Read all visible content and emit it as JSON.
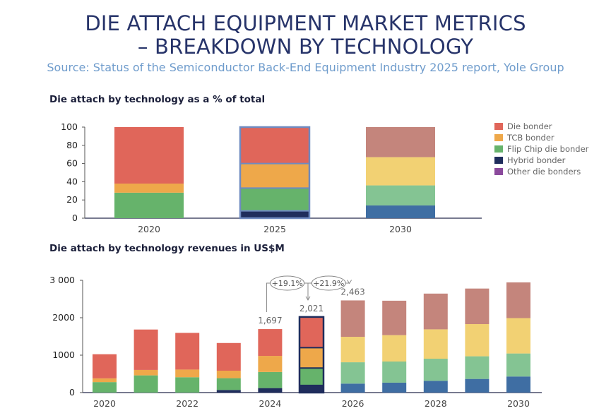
{
  "header": {
    "title_line1": "DIE ATTACH EQUIPMENT MARKET METRICS",
    "title_line2": "– BREAKDOWN BY TECHNOLOGY",
    "source": "Source: Status of the Semiconductor Back-End Equipment Industry 2025 report, Yole Group"
  },
  "legend": [
    {
      "label": "Die bonder",
      "color": "#e0665a"
    },
    {
      "label": "TCB bonder",
      "color": "#eea84a"
    },
    {
      "label": "Flip Chip die bonder",
      "color": "#66b36b"
    },
    {
      "label": "Hybrid bonder",
      "color": "#1f2d5c"
    },
    {
      "label": "Other die bonders",
      "color": "#8b4a9c"
    }
  ],
  "forecast_colors": {
    "Die bonder": "#c4857c",
    "TCB bonder": "#f2d173",
    "Flip Chip die bonder": "#84c493",
    "Hybrid bonder": "#3f6ea3"
  },
  "chart_data": [
    {
      "type": "bar",
      "stacked": true,
      "title": "Die attach by technology as a % of total",
      "categories": [
        "2020",
        "2025",
        "2030"
      ],
      "ylim": [
        0,
        100
      ],
      "yticks": [
        "0",
        "20",
        "40",
        "60",
        "80",
        "100"
      ],
      "highlighted_category": "2025",
      "series": [
        {
          "name": "Hybrid bonder",
          "values": [
            0,
            8,
            14
          ]
        },
        {
          "name": "Flip Chip die bonder",
          "values": [
            28,
            25,
            22
          ]
        },
        {
          "name": "TCB bonder",
          "values": [
            10,
            27,
            31
          ]
        },
        {
          "name": "Die bonder",
          "values": [
            62,
            40,
            33
          ]
        },
        {
          "name": "Other die bonders",
          "values": [
            0,
            0,
            0
          ]
        }
      ],
      "legend_position": "right"
    },
    {
      "type": "bar",
      "stacked": true,
      "title": "Die attach by technology revenues in US$M",
      "categories": [
        "2020",
        "2021",
        "2022",
        "2023",
        "2024",
        "2025",
        "2026",
        "2027",
        "2028",
        "2029",
        "2030"
      ],
      "xtick_labels": [
        "2020",
        "",
        "2022",
        "",
        "2024",
        "",
        "2026",
        "",
        "2028",
        "",
        "2030"
      ],
      "ylim": [
        0,
        3000
      ],
      "yticks": [
        "0",
        "1000",
        "2000",
        "3 000"
      ],
      "highlighted_category": "2025",
      "series": [
        {
          "name": "Hybrid bonder",
          "values": [
            0,
            0,
            0,
            70,
            120,
            190,
            240,
            265,
            315,
            365,
            430
          ]
        },
        {
          "name": "Flip Chip die bonder",
          "values": [
            280,
            460,
            410,
            315,
            430,
            465,
            570,
            565,
            590,
            605,
            615
          ]
        },
        {
          "name": "TCB bonder",
          "values": [
            100,
            145,
            205,
            200,
            430,
            545,
            680,
            705,
            785,
            860,
            945
          ]
        },
        {
          "name": "Die bonder",
          "values": [
            645,
            1080,
            980,
            740,
            717,
            821,
            973,
            920,
            955,
            950,
            955
          ]
        }
      ],
      "data_labels": [
        {
          "category": "2024",
          "text": "1,697"
        },
        {
          "category": "2025",
          "text": "2,021"
        },
        {
          "category": "2026",
          "text": "2,463"
        }
      ],
      "annotations": [
        {
          "from": "2024",
          "to": "2025",
          "text": "+19.1%"
        },
        {
          "from": "2025",
          "to": "2026",
          "text": "+21.9%"
        }
      ]
    }
  ]
}
